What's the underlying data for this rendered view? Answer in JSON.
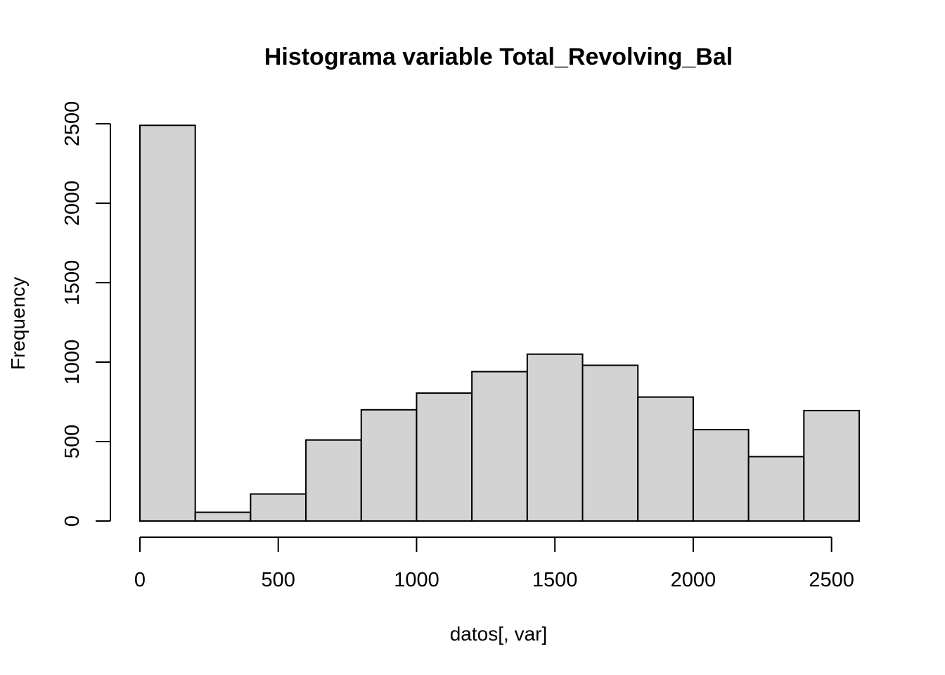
{
  "chart_data": {
    "type": "bar",
    "title": "Histograma variable Total_Revolving_Bal",
    "xlabel": "datos[, var]",
    "ylabel": "Frequency",
    "bin_edges": [
      0,
      200,
      400,
      600,
      800,
      1000,
      1200,
      1400,
      1600,
      1800,
      2000,
      2200,
      2400,
      2600
    ],
    "values": [
      2490,
      55,
      170,
      510,
      700,
      805,
      940,
      1050,
      980,
      780,
      575,
      405,
      695
    ],
    "xlim": [
      0,
      2600
    ],
    "ylim": [
      0,
      2500
    ],
    "x_ticks": [
      0,
      500,
      1000,
      1500,
      2000,
      2500
    ],
    "x_tick_labels": [
      "0",
      "500",
      "1000",
      "1500",
      "2000",
      "2500"
    ],
    "y_ticks": [
      0,
      500,
      1000,
      1500,
      2000,
      2500
    ],
    "y_tick_labels": [
      "0",
      "500",
      "1000",
      "1500",
      "2000",
      "2500"
    ],
    "bar_fill": "#d3d3d3",
    "bar_stroke": "#000000",
    "grid": false,
    "legend": "none"
  }
}
